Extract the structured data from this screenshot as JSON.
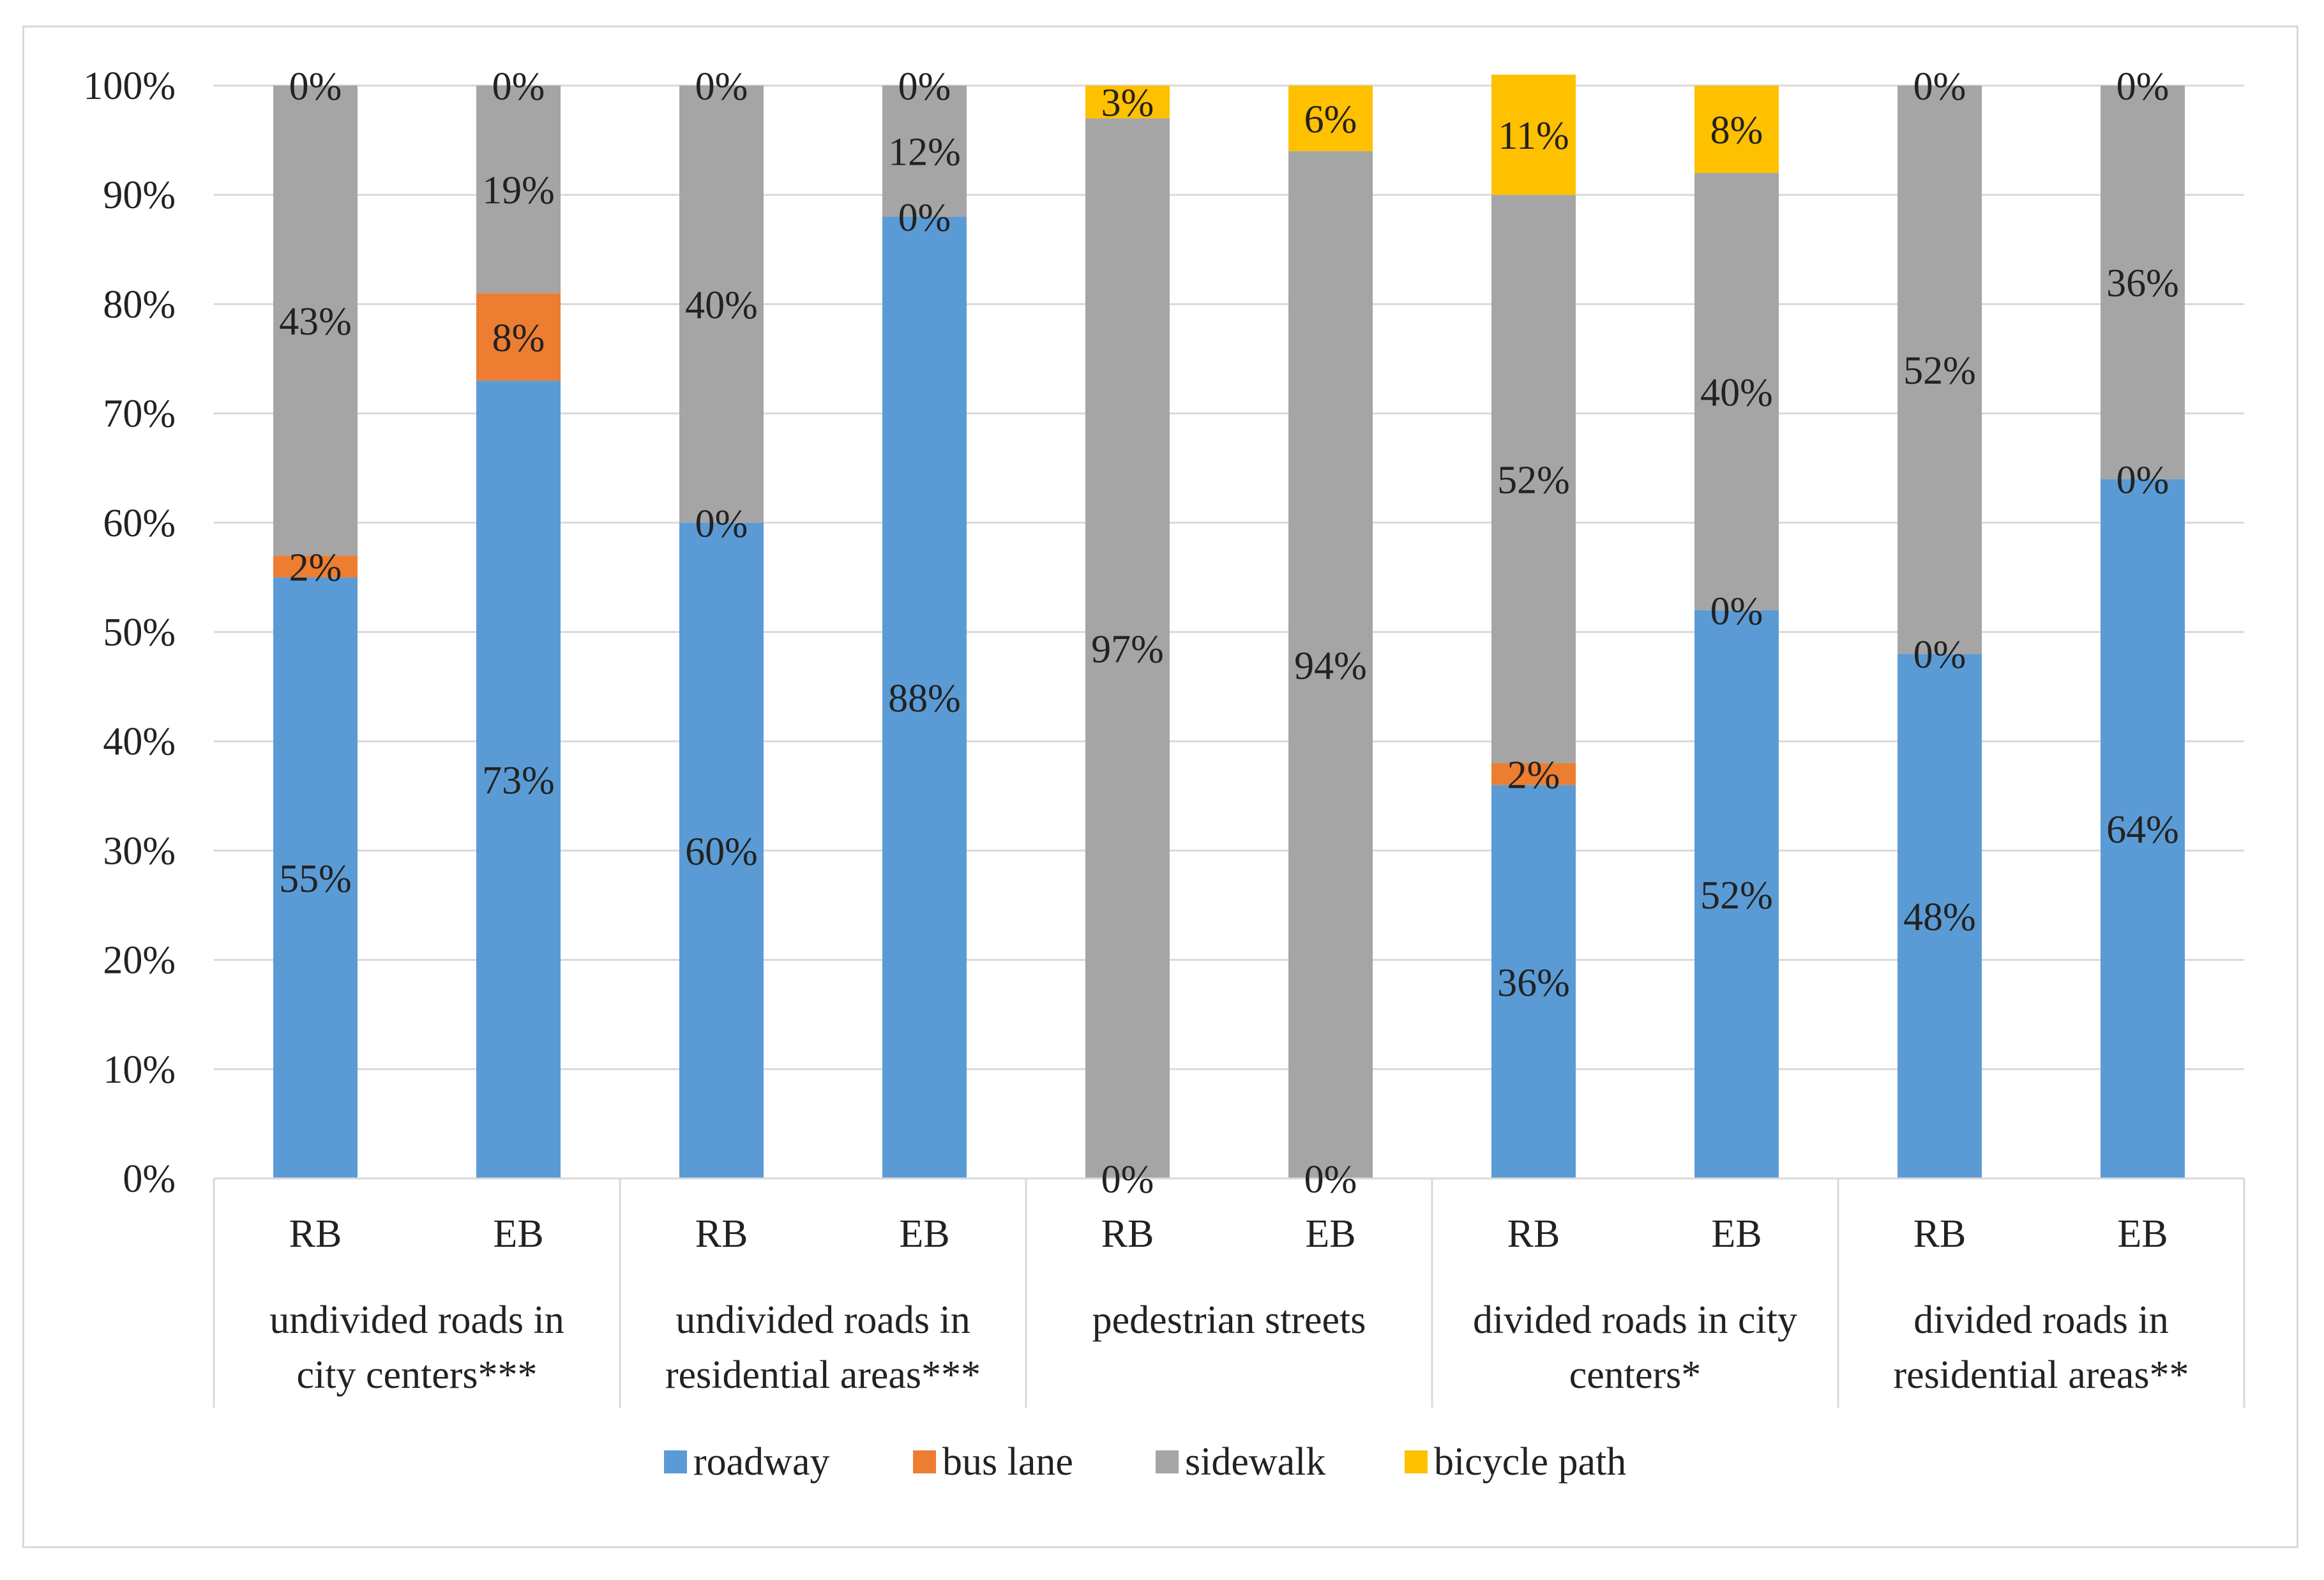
{
  "chart_data": {
    "type": "bar",
    "stacked": true,
    "percent": true,
    "ylim": [
      0,
      100
    ],
    "yticks": [
      0,
      10,
      20,
      30,
      40,
      50,
      60,
      70,
      80,
      90,
      100
    ],
    "ytick_labels": [
      "0%",
      "10%",
      "20%",
      "30%",
      "40%",
      "50%",
      "60%",
      "70%",
      "80%",
      "90%",
      "100%"
    ],
    "categories": [
      "RB",
      "EB",
      "RB",
      "EB",
      "RB",
      "EB",
      "RB",
      "EB",
      "RB",
      "EB"
    ],
    "groups": [
      {
        "label_lines": [
          "undivided roads in",
          "city centers***"
        ],
        "bars": [
          0,
          1
        ]
      },
      {
        "label_lines": [
          "undivided roads in",
          "residential areas***"
        ],
        "bars": [
          2,
          3
        ]
      },
      {
        "label_lines": [
          "pedestrian streets"
        ],
        "bars": [
          4,
          5
        ]
      },
      {
        "label_lines": [
          "divided roads in city",
          "centers*"
        ],
        "bars": [
          6,
          7
        ]
      },
      {
        "label_lines": [
          "divided roads in",
          "residential areas**"
        ],
        "bars": [
          8,
          9
        ]
      }
    ],
    "series": [
      {
        "name": "roadway",
        "color": "#5b9bd5",
        "values": [
          55,
          73,
          60,
          88,
          0,
          0,
          36,
          52,
          48,
          64
        ],
        "labels": [
          "55%",
          "73%",
          "60%",
          "88%",
          "0%",
          "0%",
          "36%",
          "52%",
          "48%",
          "64%"
        ]
      },
      {
        "name": "bus lane",
        "color": "#ed7d31",
        "values": [
          2,
          8,
          0,
          0,
          0,
          0,
          2,
          0,
          0,
          0
        ],
        "labels": [
          "2%",
          "8%",
          "0%",
          "0%",
          "",
          "",
          "2%",
          "0%",
          "0%",
          "0%"
        ]
      },
      {
        "name": "sidewalk",
        "color": "#a5a5a5",
        "values": [
          43,
          19,
          40,
          12,
          97,
          94,
          52,
          40,
          52,
          36
        ],
        "labels": [
          "43%",
          "19%",
          "40%",
          "12%",
          "97%",
          "94%",
          "52%",
          "40%",
          "52%",
          "36%"
        ]
      },
      {
        "name": "bicycle path",
        "color": "#ffc000",
        "values": [
          0,
          0,
          0,
          0,
          3,
          6,
          11,
          8,
          0,
          0
        ],
        "labels": [
          "0%",
          "0%",
          "0%",
          "0%",
          "3%",
          "6%",
          "11%",
          "8%",
          "0%",
          "0%"
        ]
      }
    ],
    "legend_position": "bottom",
    "gridlines": true
  }
}
